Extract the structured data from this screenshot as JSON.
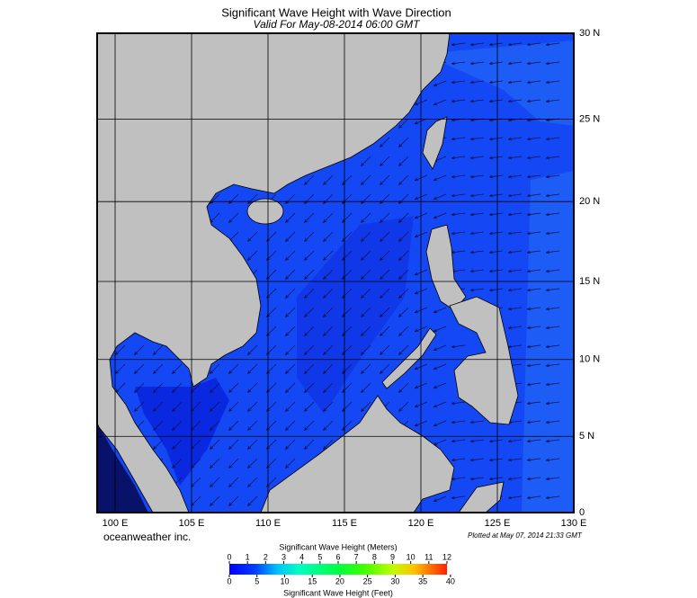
{
  "title": "Significant Wave Height with Wave Direction",
  "subtitle": "Valid For May-08-2014 06:00 GMT",
  "map": {
    "lon_ticks": [
      {
        "value": 100,
        "label": "100 E"
      },
      {
        "value": 105,
        "label": "105 E"
      },
      {
        "value": 110,
        "label": "110 E"
      },
      {
        "value": 115,
        "label": "115 E"
      },
      {
        "value": 120,
        "label": "120 E"
      },
      {
        "value": 125,
        "label": "125 E"
      },
      {
        "value": 130,
        "label": "130 E"
      }
    ],
    "lat_ticks": [
      {
        "value": 0,
        "label": "0"
      },
      {
        "value": 5,
        "label": "5 N"
      },
      {
        "value": 10,
        "label": "10 N"
      },
      {
        "value": 15,
        "label": "15 N"
      },
      {
        "value": 20,
        "label": "20 N"
      },
      {
        "value": 25,
        "label": "25 N"
      },
      {
        "value": 30,
        "label": "30 N"
      }
    ]
  },
  "credit": "oceanweather inc.",
  "plotted": "Plotted at May 07, 2014 21:33 GMT",
  "colorbar": {
    "meters_title": "Significant Wave Height (Meters)",
    "meters_ticks": [
      0,
      1,
      2,
      3,
      4,
      5,
      6,
      7,
      8,
      9,
      10,
      11,
      12
    ],
    "feet_title": "Significant Wave Height (Feet)",
    "feet_ticks": [
      0,
      5,
      10,
      15,
      20,
      25,
      30,
      35,
      40
    ]
  }
}
